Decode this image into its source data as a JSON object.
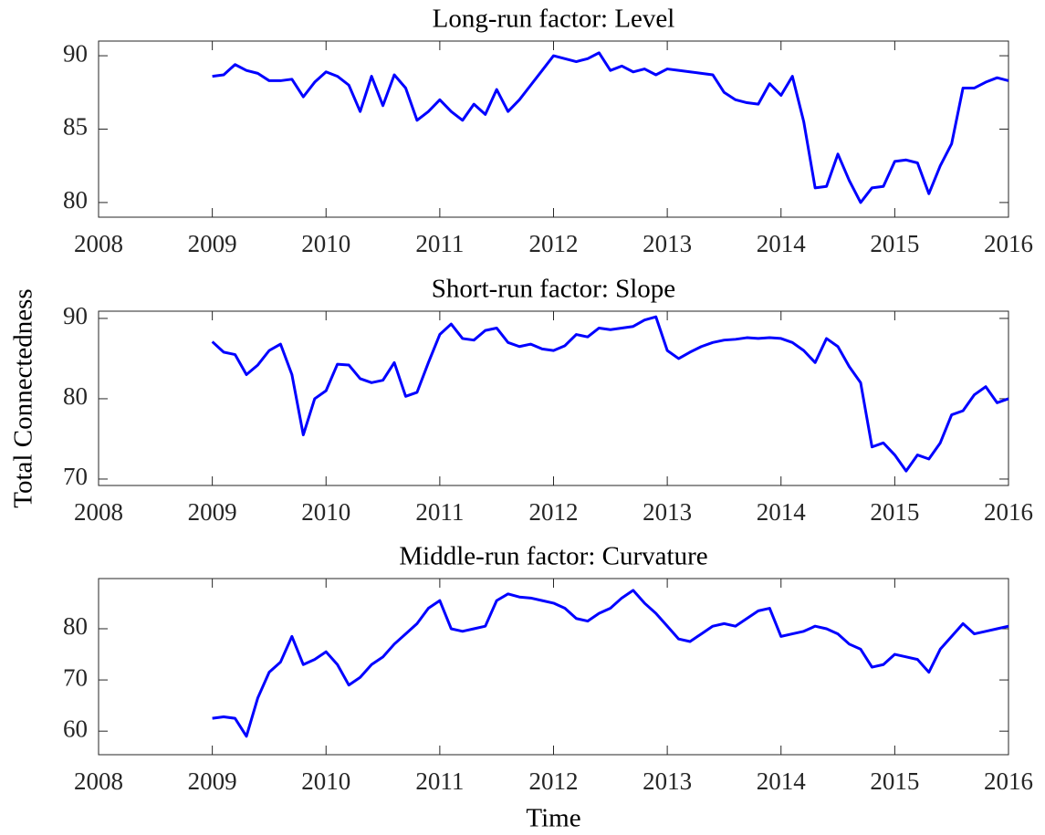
{
  "chart_data": [
    {
      "type": "line",
      "title": "Long-run factor: Level",
      "color": "#0000ff",
      "x": [
        2009.0,
        2009.1,
        2009.2,
        2009.3,
        2009.4,
        2009.5,
        2009.6,
        2009.7,
        2009.8,
        2009.9,
        2010.0,
        2010.1,
        2010.2,
        2010.3,
        2010.4,
        2010.5,
        2010.6,
        2010.7,
        2010.8,
        2010.9,
        2011.0,
        2011.1,
        2011.2,
        2011.3,
        2011.4,
        2011.5,
        2011.6,
        2011.7,
        2011.8,
        2011.9,
        2012.0,
        2012.1,
        2012.2,
        2012.3,
        2012.4,
        2012.5,
        2012.6,
        2012.7,
        2012.8,
        2012.9,
        2013.0,
        2013.1,
        2013.2,
        2013.3,
        2013.4,
        2013.5,
        2013.6,
        2013.7,
        2013.8,
        2013.9,
        2014.0,
        2014.1,
        2014.2,
        2014.3,
        2014.4,
        2014.5,
        2014.6,
        2014.7,
        2014.8,
        2014.9,
        2015.0,
        2015.1,
        2015.2,
        2015.3,
        2015.4,
        2015.5,
        2015.6,
        2015.7,
        2015.8,
        2015.9,
        2016.0
      ],
      "values": [
        88.6,
        88.7,
        89.4,
        89.0,
        88.8,
        88.3,
        88.3,
        88.4,
        87.2,
        88.2,
        88.9,
        88.6,
        88.0,
        86.2,
        88.6,
        86.6,
        88.7,
        87.8,
        85.6,
        86.2,
        87.0,
        86.2,
        85.6,
        86.7,
        86.0,
        87.7,
        86.2,
        87.0,
        88.0,
        89.0,
        90.0,
        89.8,
        89.6,
        89.8,
        90.2,
        89.0,
        89.3,
        88.9,
        89.1,
        88.7,
        89.1,
        89.0,
        88.9,
        88.8,
        88.7,
        87.5,
        87.0,
        86.8,
        86.7,
        88.1,
        87.3,
        88.6,
        85.5,
        81.0,
        81.1,
        83.3,
        81.5,
        80.0,
        81.0,
        81.1,
        82.8,
        82.9,
        82.7,
        80.6,
        82.5,
        84.0,
        87.8,
        87.8,
        88.2,
        88.5,
        88.3
      ],
      "xlim": [
        2008,
        2016
      ],
      "xticks": [
        2008,
        2009,
        2010,
        2011,
        2012,
        2013,
        2014,
        2015,
        2016
      ],
      "ylim": [
        79,
        91
      ],
      "yticks": [
        80,
        85,
        90
      ]
    },
    {
      "type": "line",
      "title": "Short-run factor: Slope",
      "ylabel": "Total Connectedness",
      "color": "#0000ff",
      "x": [
        2009.0,
        2009.1,
        2009.2,
        2009.3,
        2009.4,
        2009.5,
        2009.6,
        2009.7,
        2009.8,
        2009.9,
        2010.0,
        2010.1,
        2010.2,
        2010.3,
        2010.4,
        2010.5,
        2010.6,
        2010.7,
        2010.8,
        2010.9,
        2011.0,
        2011.1,
        2011.2,
        2011.3,
        2011.4,
        2011.5,
        2011.6,
        2011.7,
        2011.8,
        2011.9,
        2012.0,
        2012.1,
        2012.2,
        2012.3,
        2012.4,
        2012.5,
        2012.6,
        2012.7,
        2012.8,
        2012.9,
        2013.0,
        2013.1,
        2013.2,
        2013.3,
        2013.4,
        2013.5,
        2013.6,
        2013.7,
        2013.8,
        2013.9,
        2014.0,
        2014.1,
        2014.2,
        2014.3,
        2014.4,
        2014.5,
        2014.6,
        2014.7,
        2014.8,
        2014.9,
        2015.0,
        2015.1,
        2015.2,
        2015.3,
        2015.4,
        2015.5,
        2015.6,
        2015.7,
        2015.8,
        2015.9,
        2016.0
      ],
      "values": [
        87.1,
        85.8,
        85.5,
        83.0,
        84.2,
        86.0,
        86.8,
        83.0,
        75.5,
        80.0,
        81.0,
        84.3,
        84.2,
        82.5,
        82.0,
        82.3,
        84.5,
        80.3,
        80.8,
        84.5,
        88.0,
        89.3,
        87.5,
        87.3,
        88.5,
        88.8,
        87.0,
        86.5,
        86.8,
        86.2,
        86.0,
        86.6,
        88.0,
        87.7,
        88.8,
        88.6,
        88.8,
        89.0,
        89.8,
        90.2,
        86.0,
        85.0,
        85.8,
        86.5,
        87.0,
        87.3,
        87.4,
        87.6,
        87.5,
        87.6,
        87.5,
        87.0,
        86.0,
        84.5,
        87.5,
        86.5,
        84.0,
        82.0,
        74.0,
        74.5,
        73.0,
        71.0,
        73.0,
        72.5,
        74.5,
        78.0,
        78.5,
        80.5,
        81.5,
        79.5,
        80.0
      ],
      "xlim": [
        2008,
        2016
      ],
      "xticks": [
        2008,
        2009,
        2010,
        2011,
        2012,
        2013,
        2014,
        2015,
        2016
      ],
      "ylim": [
        69.2,
        90.9
      ],
      "yticks": [
        70,
        80,
        90
      ]
    },
    {
      "type": "line",
      "title": "Middle-run factor: Curvature",
      "xlabel": "Time",
      "color": "#0000ff",
      "x": [
        2009.0,
        2009.1,
        2009.2,
        2009.3,
        2009.4,
        2009.5,
        2009.6,
        2009.7,
        2009.8,
        2009.9,
        2010.0,
        2010.1,
        2010.2,
        2010.3,
        2010.4,
        2010.5,
        2010.6,
        2010.7,
        2010.8,
        2010.9,
        2011.0,
        2011.1,
        2011.2,
        2011.3,
        2011.4,
        2011.5,
        2011.6,
        2011.7,
        2011.8,
        2011.9,
        2012.0,
        2012.1,
        2012.2,
        2012.3,
        2012.4,
        2012.5,
        2012.6,
        2012.7,
        2012.8,
        2012.9,
        2013.0,
        2013.1,
        2013.2,
        2013.3,
        2013.4,
        2013.5,
        2013.6,
        2013.7,
        2013.8,
        2013.9,
        2014.0,
        2014.1,
        2014.2,
        2014.3,
        2014.4,
        2014.5,
        2014.6,
        2014.7,
        2014.8,
        2014.9,
        2015.0,
        2015.1,
        2015.2,
        2015.3,
        2015.4,
        2015.5,
        2015.6,
        2015.7,
        2015.8,
        2015.9,
        2016.0
      ],
      "values": [
        62.5,
        62.8,
        62.5,
        59,
        66.5,
        71.5,
        73.5,
        78.5,
        73.0,
        74.0,
        75.5,
        73.0,
        69.0,
        70.5,
        73.0,
        74.5,
        77.0,
        79.0,
        81.0,
        84.0,
        85.5,
        80.0,
        79.5,
        80.0,
        80.5,
        85.5,
        86.8,
        86.2,
        86.0,
        85.5,
        85.0,
        84.0,
        82.0,
        81.5,
        83.0,
        84.0,
        86.0,
        87.5,
        85.0,
        83.0,
        80.5,
        78.0,
        77.5,
        79.0,
        80.5,
        81.0,
        80.5,
        82.0,
        83.5,
        84.0,
        78.5,
        79.0,
        79.5,
        80.5,
        80.0,
        79.0,
        77.0,
        76.0,
        72.5,
        73.0,
        75.0,
        74.5,
        74.0,
        71.5,
        76.0,
        78.5,
        81.0,
        79.0,
        79.5,
        80.0,
        80.5
      ],
      "xlim": [
        2008,
        2016
      ],
      "xticks": [
        2008,
        2009,
        2010,
        2011,
        2012,
        2013,
        2014,
        2015,
        2016
      ],
      "ylim": [
        55.4,
        89.8
      ],
      "yticks": [
        60,
        70,
        80
      ]
    }
  ]
}
